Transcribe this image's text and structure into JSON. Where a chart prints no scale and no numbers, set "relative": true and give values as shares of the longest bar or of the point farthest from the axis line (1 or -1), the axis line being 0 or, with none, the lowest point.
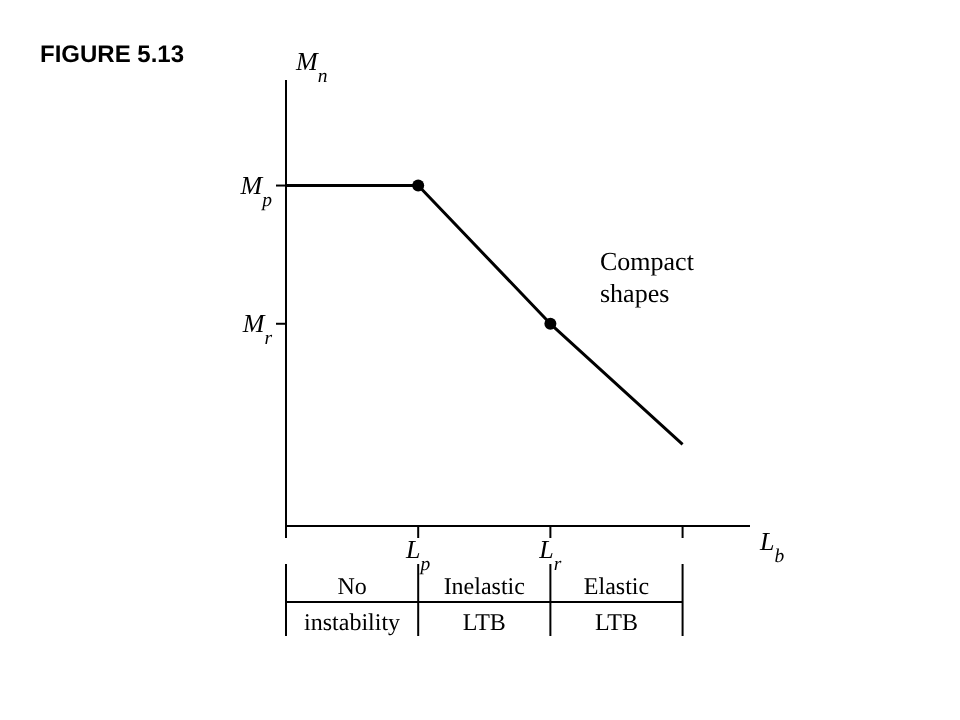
{
  "chart_data": {
    "type": "line",
    "title": "FIGURE 5.13",
    "xlabel": "L$_{b}$",
    "ylabel": "M$_{n}$",
    "relative": true,
    "categories": [
      null,
      "L$_{p}$",
      "L$_{r}$",
      null
    ],
    "series": [
      {
        "type": "line",
        "color": "#000000",
        "values": [
          1,
          1,
          0.594,
          0.24
        ]
      },
      {
        "type": "scatter",
        "color": "#000000",
        "x": [
          "L$_{p}$",
          "L$_{r}$"
        ],
        "values": [
          1,
          0.594
        ]
      }
    ],
    "grid": false,
    "legend": false,
    "annotations": [
      "Compact shapes",
      "M$_{p}$",
      "M$_{r}$",
      "No instability",
      "Inelastic LTB",
      "Elastic LTB"
    ]
  }
}
